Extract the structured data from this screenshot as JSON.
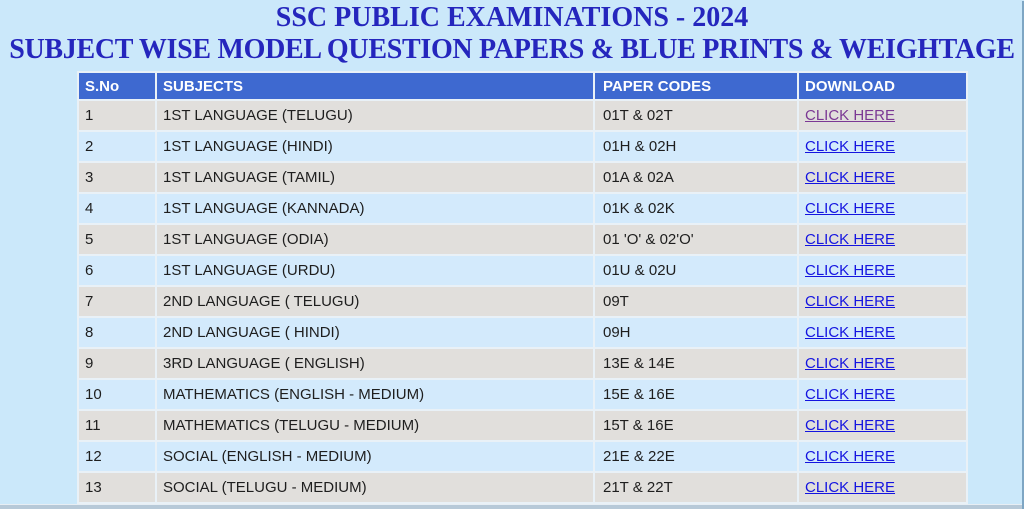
{
  "page": {
    "title_line1": "SSC PUBLIC EXAMINATIONS - 2024",
    "title_line2": "SUBJECT WISE MODEL QUESTION PAPERS & BLUE PRINTS & WEIGHTAGE"
  },
  "table": {
    "columns": [
      "S.No",
      "SUBJECTS",
      "PAPER CODES",
      "DOWNLOAD"
    ],
    "rows": [
      {
        "sno": "1",
        "subject": "1ST LANGUAGE (TELUGU)",
        "codes": "01T & 02T",
        "link": "CLICK HERE",
        "visited": true
      },
      {
        "sno": "2",
        "subject": "1ST LANGUAGE (HINDI)",
        "codes": "01H & 02H",
        "link": "CLICK HERE",
        "visited": false
      },
      {
        "sno": "3",
        "subject": "1ST LANGUAGE (TAMIL)",
        "codes": "01A & 02A",
        "link": "CLICK HERE",
        "visited": false
      },
      {
        "sno": "4",
        "subject": "1ST LANGUAGE (KANNADA)",
        "codes": "01K & 02K",
        "link": "CLICK HERE",
        "visited": false
      },
      {
        "sno": "5",
        "subject": "1ST LANGUAGE (ODIA)",
        "codes": "01 'O' & 02'O'",
        "link": "CLICK HERE",
        "visited": false
      },
      {
        "sno": "6",
        "subject": "1ST LANGUAGE (URDU)",
        "codes": "01U & 02U",
        "link": "CLICK HERE",
        "visited": false
      },
      {
        "sno": "7",
        "subject": "2ND LANGUAGE ( TELUGU)",
        "codes": "09T",
        "link": "CLICK HERE",
        "visited": false
      },
      {
        "sno": "8",
        "subject": "2ND LANGUAGE ( HINDI)",
        "codes": "09H",
        "link": "CLICK HERE",
        "visited": false
      },
      {
        "sno": "9",
        "subject": "3RD LANGUAGE ( ENGLISH)",
        "codes": "13E & 14E",
        "link": "CLICK HERE",
        "visited": false
      },
      {
        "sno": "10",
        "subject": "MATHEMATICS (ENGLISH - MEDIUM)",
        "codes": "15E & 16E",
        "link": "CLICK HERE",
        "visited": false
      },
      {
        "sno": "11",
        "subject": "MATHEMATICS (TELUGU - MEDIUM)",
        "codes": "15T & 16E",
        "link": "CLICK HERE",
        "visited": false
      },
      {
        "sno": "12",
        "subject": "SOCIAL (ENGLISH - MEDIUM)",
        "codes": "21E & 22E",
        "link": "CLICK HERE",
        "visited": false
      },
      {
        "sno": "13",
        "subject": "SOCIAL (TELUGU - MEDIUM)",
        "codes": "21T & 22T",
        "link": "CLICK HERE",
        "visited": false
      }
    ]
  },
  "colors": {
    "page_bg": "#cbe8fa",
    "title_color": "#2526bd",
    "header_bg": "#3e69d0",
    "header_text": "#ffffff",
    "row_gray": "#e1dfdc",
    "row_blue": "#d3eafc",
    "cell_text": "#1e1e1e",
    "link_blue": "#1414e0",
    "link_visited": "#7b3894",
    "footer_band": "#b7c9d8",
    "edge_line": "#7ea6c4"
  }
}
